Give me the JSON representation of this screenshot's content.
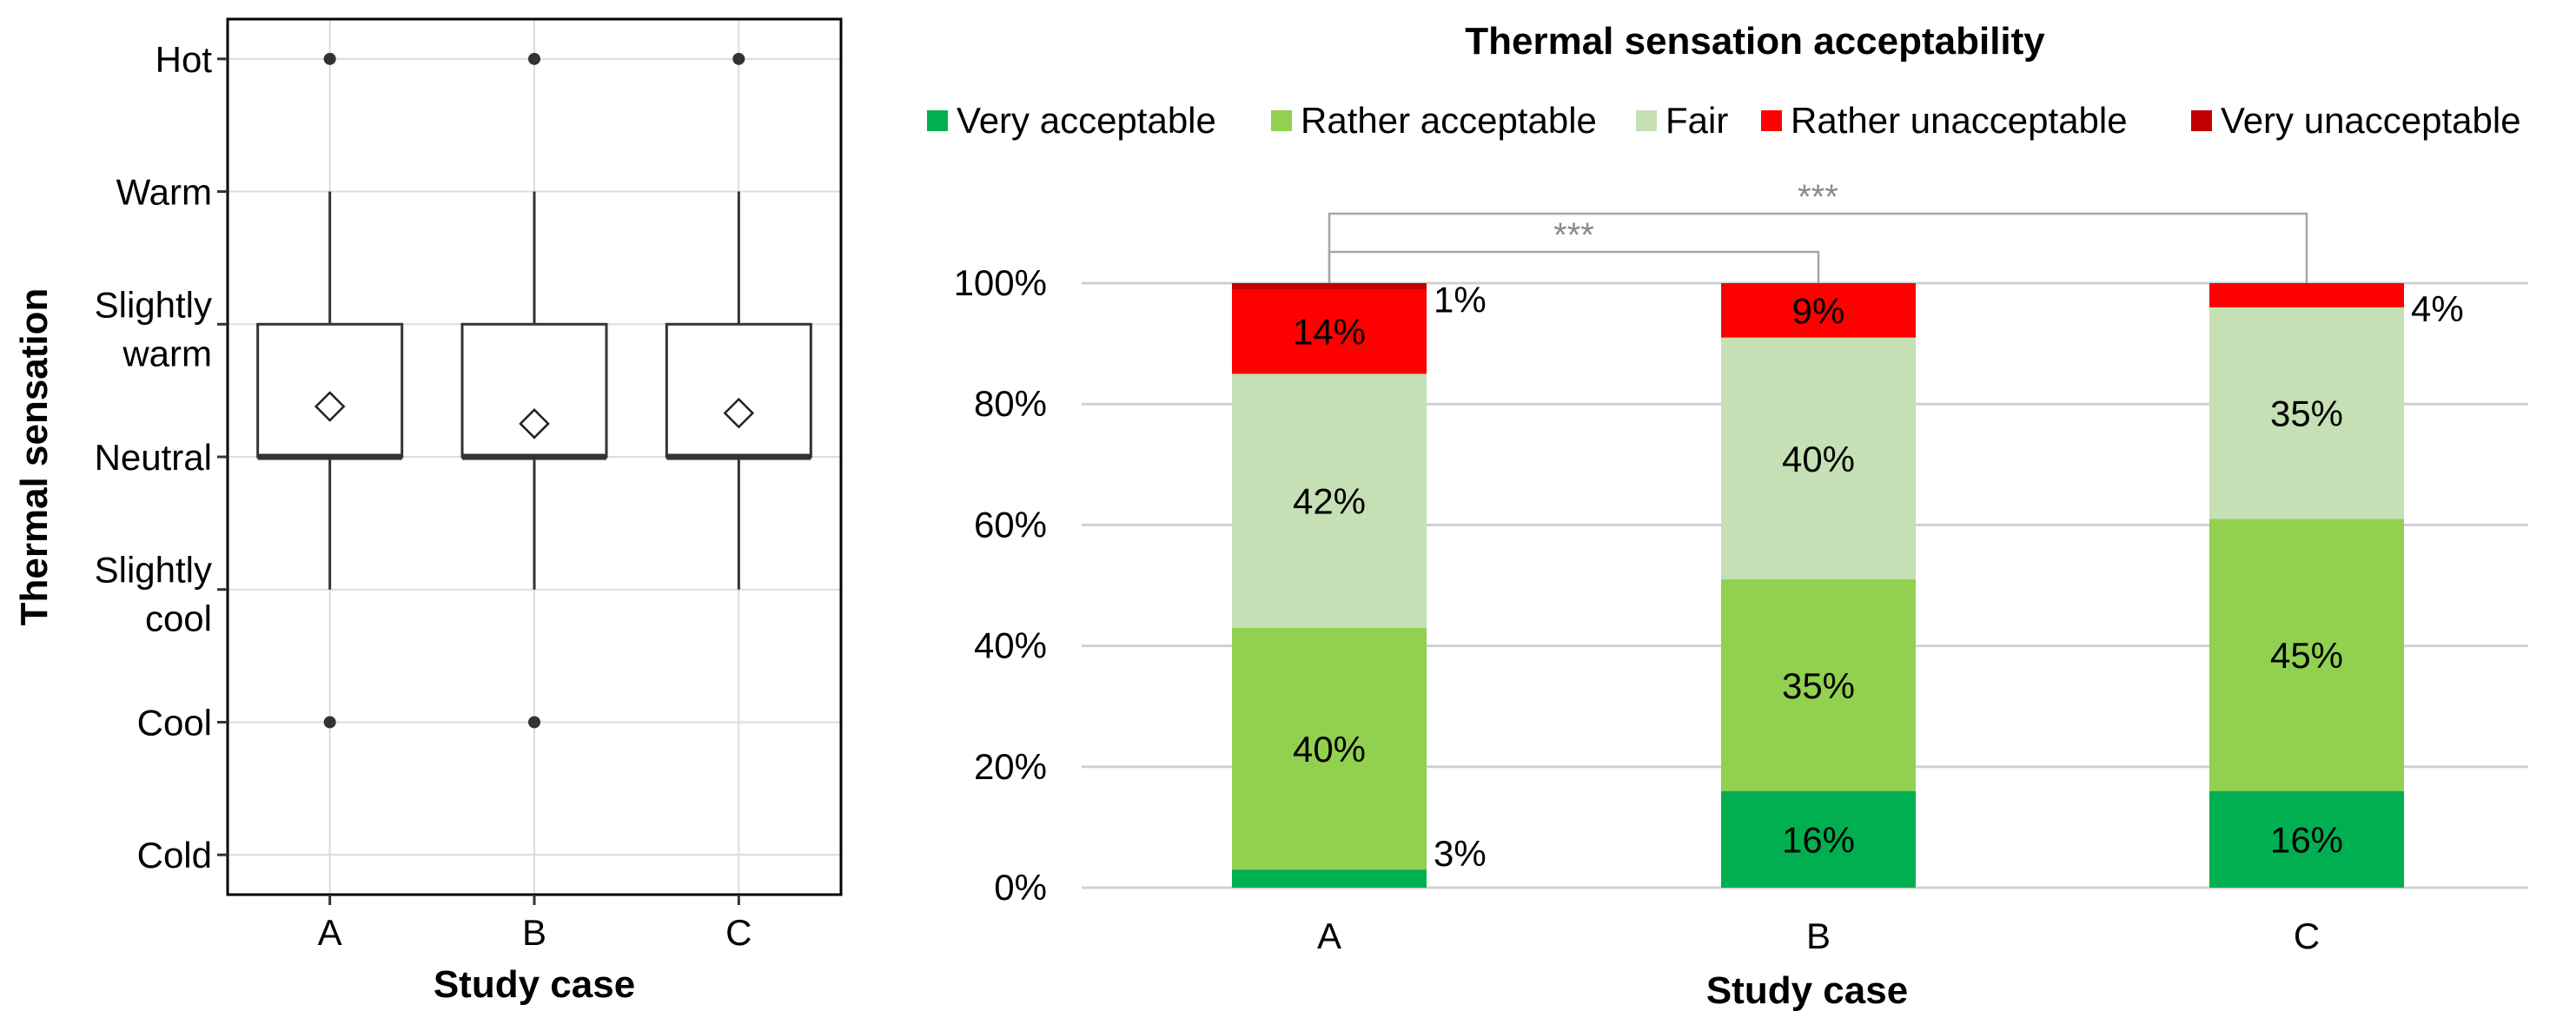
{
  "chart_data": [
    {
      "type": "box",
      "title": "",
      "xlabel": "Study case",
      "ylabel": "Thermal sensation",
      "categories": [
        "A",
        "B",
        "C"
      ],
      "y_levels": [
        "Cold",
        "Cool",
        "Slightly cool",
        "Neutral",
        "Slightly warm",
        "Warm",
        "Hot"
      ],
      "y_tick_lines": [
        [
          "Hot"
        ],
        [
          "Warm"
        ],
        [
          "Slightly",
          "warm"
        ],
        [
          "Neutral"
        ],
        [
          "Slightly",
          "cool"
        ],
        [
          "Cool"
        ],
        [
          "Cold"
        ]
      ],
      "ylim": [
        -3.3,
        3.3
      ],
      "grid": true,
      "boxes": [
        {
          "category": "A",
          "whisker_low": -1,
          "q1": 0,
          "median": 0,
          "q3": 1,
          "whisker_high": 2,
          "mean": 0.38,
          "outliers": [
            3,
            -2
          ]
        },
        {
          "category": "B",
          "whisker_low": -1,
          "q1": 0,
          "median": 0,
          "q3": 1,
          "whisker_high": 2,
          "mean": 0.25,
          "outliers": [
            3,
            -2
          ]
        },
        {
          "category": "C",
          "whisker_low": -1,
          "q1": 0,
          "median": 0,
          "q3": 1,
          "whisker_high": 2,
          "mean": 0.33,
          "outliers": [
            3
          ]
        }
      ]
    },
    {
      "type": "stacked_bar",
      "title": "Thermal sensation acceptability",
      "xlabel": "Study case",
      "ylabel": "",
      "categories": [
        "A",
        "B",
        "C"
      ],
      "ylim": [
        0,
        100
      ],
      "y_ticks": [
        "0%",
        "20%",
        "40%",
        "60%",
        "80%",
        "100%"
      ],
      "legend_position": "top",
      "series": [
        {
          "name": "Very acceptable",
          "color": "#00b050",
          "values": [
            3,
            16,
            16
          ],
          "labels": [
            "3%",
            "16%",
            "16%"
          ]
        },
        {
          "name": "Rather acceptable",
          "color": "#92d050",
          "values": [
            40,
            35,
            45
          ],
          "labels": [
            "40%",
            "35%",
            "45%"
          ]
        },
        {
          "name": "Fair",
          "color": "#c5e0b4",
          "values": [
            42,
            40,
            35
          ],
          "labels": [
            "42%",
            "40%",
            "35%"
          ]
        },
        {
          "name": "Rather unacceptable",
          "color": "#ff0000",
          "values": [
            14,
            9,
            4
          ],
          "labels": [
            "14%",
            "9%",
            "4%"
          ]
        },
        {
          "name": "Very unacceptable",
          "color": "#c00000",
          "values": [
            1,
            0,
            0
          ],
          "labels": [
            "1%",
            "",
            ""
          ]
        }
      ],
      "significance": [
        {
          "from": "A",
          "to": "B",
          "label": "***"
        },
        {
          "from": "A",
          "to": "C",
          "label": "***"
        }
      ]
    }
  ]
}
